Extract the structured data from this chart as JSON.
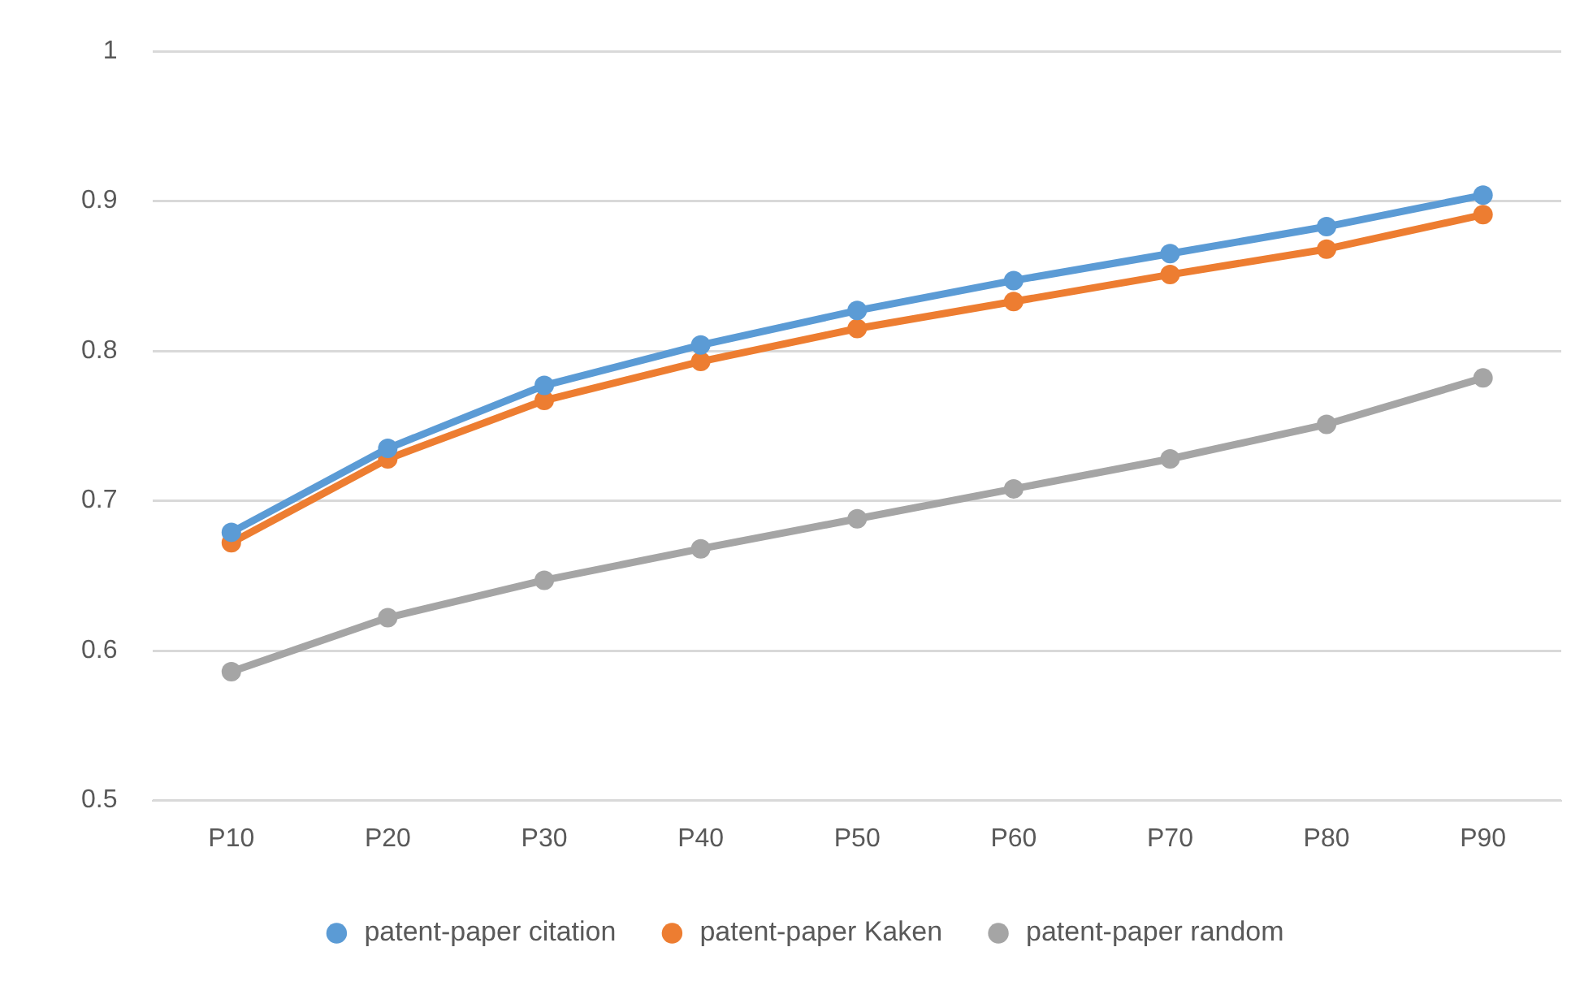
{
  "chart_data": {
    "type": "line",
    "categories": [
      "P10",
      "P20",
      "P30",
      "P40",
      "P50",
      "P60",
      "P70",
      "P80",
      "P90"
    ],
    "series": [
      {
        "name": "patent-paper citation",
        "color": "#5b9bd5",
        "values": [
          0.679,
          0.735,
          0.777,
          0.804,
          0.827,
          0.847,
          0.865,
          0.883,
          0.904
        ]
      },
      {
        "name": "patent-paper Kaken",
        "color": "#ed7d31",
        "values": [
          0.672,
          0.728,
          0.767,
          0.793,
          0.815,
          0.833,
          0.851,
          0.868,
          0.891
        ]
      },
      {
        "name": "patent-paper random",
        "color": "#a5a5a5",
        "values": [
          0.586,
          0.622,
          0.647,
          0.668,
          0.688,
          0.708,
          0.728,
          0.751,
          0.782
        ]
      }
    ],
    "ylim": [
      0.5,
      1
    ],
    "yticks": [
      0.5,
      0.6,
      0.7,
      0.8,
      0.9,
      1
    ],
    "grid": "y",
    "legend": "bottom",
    "marker": "circle",
    "line_style": "solid"
  }
}
